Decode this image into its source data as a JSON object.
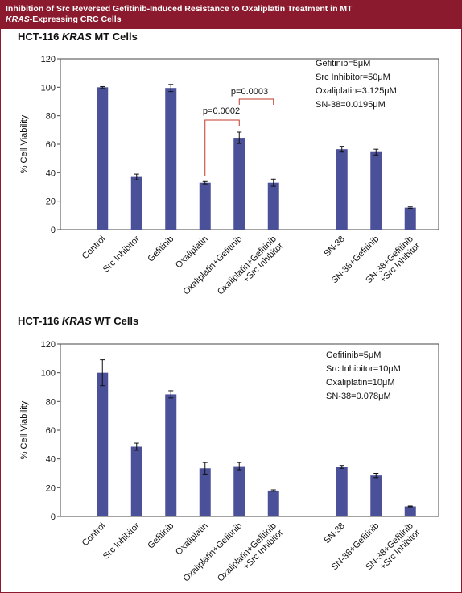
{
  "header": {
    "title": [
      "Inhibition of Src Reversed Gefitinib-Induced Resistance to Oxaliplatin Treatment in MT",
      "KRAS",
      "-Expressing CRC Cells"
    ]
  },
  "chart_data": [
    {
      "type": "bar",
      "title": [
        "HCT-116 ",
        "KRAS",
        " MT Cells"
      ],
      "ylabel": "% Cell Viability",
      "categories": [
        "Control",
        "Src Inhibitor",
        "Gefitinib",
        "Oxaliplatin",
        "Oxaliplatin+Gefitinib",
        [
          "Oxaliplatin+Gefitinib",
          "+Src Inhibitor"
        ],
        null,
        "SN-38",
        "SN-38+Gefitinib",
        [
          "SN-38+Gefitinib",
          "+Src Inhibitor"
        ]
      ],
      "values": [
        100,
        37,
        99.5,
        33,
        64.5,
        33,
        null,
        56.5,
        54.5,
        15.5
      ],
      "errors": [
        0.5,
        2,
        2.5,
        0.8,
        4,
        2.5,
        null,
        2,
        2,
        0.5
      ],
      "color": "#4b5199",
      "ylim": [
        0,
        120
      ],
      "yticks": [
        0,
        20,
        40,
        60,
        80,
        100,
        120
      ],
      "notes": [
        "Gefitinib=5μM",
        "Src Inhibitor=50μM",
        "Oxaliplatin=3.125μM",
        "SN-38=0.0195μM"
      ],
      "annotations": [
        "p=0.0002",
        "p=0.0003"
      ],
      "annotation_color": "#c0392b"
    },
    {
      "type": "bar",
      "title": [
        "HCT-116 ",
        "KRAS",
        " WT Cells"
      ],
      "ylabel": "% Cell Viability",
      "categories": [
        "Control",
        "Src Inhibitor",
        "Gefitinib",
        "Oxaliplatin",
        "Oxaliplatin+Gefitinib",
        [
          "Oxaliplatin+Gefitinib",
          "+Src Inhibitor"
        ],
        null,
        "SN-38",
        "SN-38+Gefitinib",
        [
          "SN-38+Gefitinib",
          "+Src Inhibitor"
        ]
      ],
      "values": [
        100,
        48.5,
        85,
        33.5,
        35,
        18,
        null,
        34.5,
        28.5,
        7
      ],
      "errors": [
        9,
        2.5,
        2.5,
        4,
        2.5,
        0.5,
        null,
        1,
        1.5,
        0.3
      ],
      "color": "#4b5199",
      "ylim": [
        0,
        120
      ],
      "yticks": [
        0,
        20,
        40,
        60,
        80,
        100,
        120
      ],
      "notes": [
        "Gefitinib=5μM",
        "Src Inhibitor=10μM",
        "Oxaliplatin=10μM",
        "SN-38=0.078μM"
      ]
    }
  ]
}
